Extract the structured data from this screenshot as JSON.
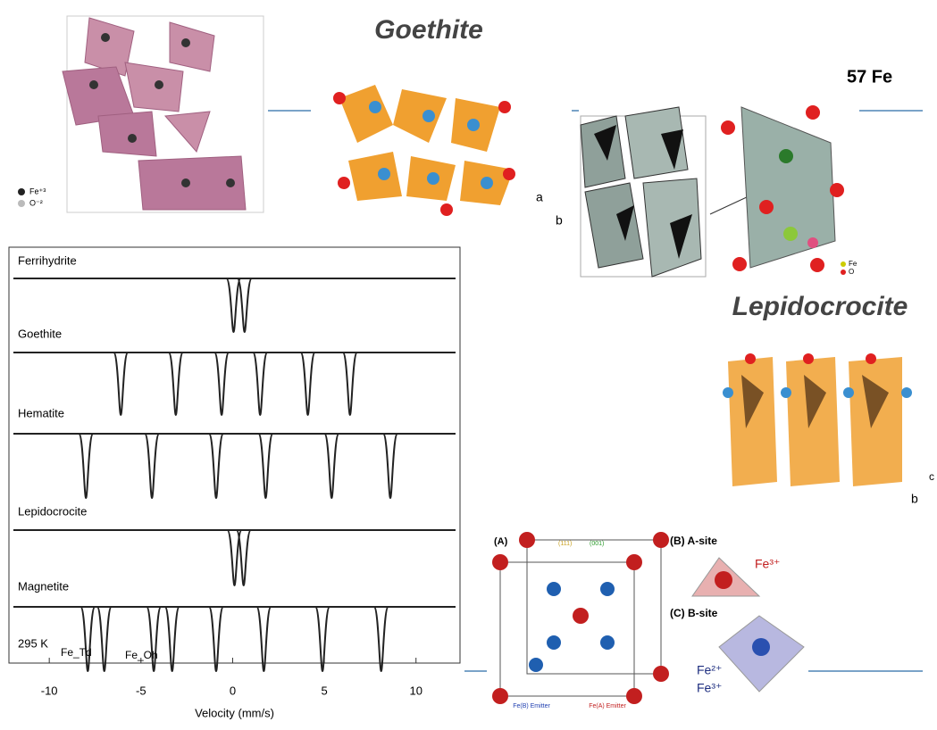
{
  "header": {
    "goethite": "Goethite",
    "isotope": "57 Fe",
    "lepidocrocite": "Lepidocrocite"
  },
  "labels": {
    "fe3": "Fe⁺³",
    "o2": "O⁻²",
    "fe": "Fe",
    "o": "O",
    "a": "a",
    "b": "b",
    "c": "c"
  },
  "magnetite_panel": {
    "a": "(A)",
    "b": "(B) A-site",
    "c": "(C) B-site",
    "fe3a": "Fe³⁺",
    "fe2": "Fe²⁺",
    "fe3b": "Fe³⁺",
    "plane001": "(001)",
    "plane111": "(111)",
    "emitter_b": "Fe(B) Emitter",
    "emitter_a": "Fe(A) Emitter"
  },
  "chart_data": {
    "type": "spectra",
    "xlabel": "Velocity (mm/s)",
    "xlim": [
      -12.2,
      12.4
    ],
    "xticks": [
      -10,
      -5,
      0,
      5,
      10
    ],
    "annotations": [
      "295 K",
      "Fe_Td",
      "Fe_Oh"
    ],
    "series": [
      {
        "name": "Ferrihydrite",
        "color": "#222222",
        "dips": [
          0.05,
          0.65
        ]
      },
      {
        "name": "Goethite",
        "color": "#222222",
        "dips": [
          -6.1,
          -3.1,
          -0.6,
          1.5,
          4.1,
          6.4
        ]
      },
      {
        "name": "Hematite",
        "color": "#222222",
        "dips": [
          -8.0,
          -4.4,
          -0.9,
          1.8,
          5.4,
          8.6
        ]
      },
      {
        "name": "Lepidocrocite",
        "color": "#222222",
        "dips": [
          0.1,
          0.6
        ]
      },
      {
        "name": "Magnetite",
        "color": "#222222",
        "dips": [
          -7.9,
          -7.0,
          -4.3,
          -3.3,
          -0.9,
          1.7,
          4.9,
          8.1
        ]
      }
    ]
  }
}
